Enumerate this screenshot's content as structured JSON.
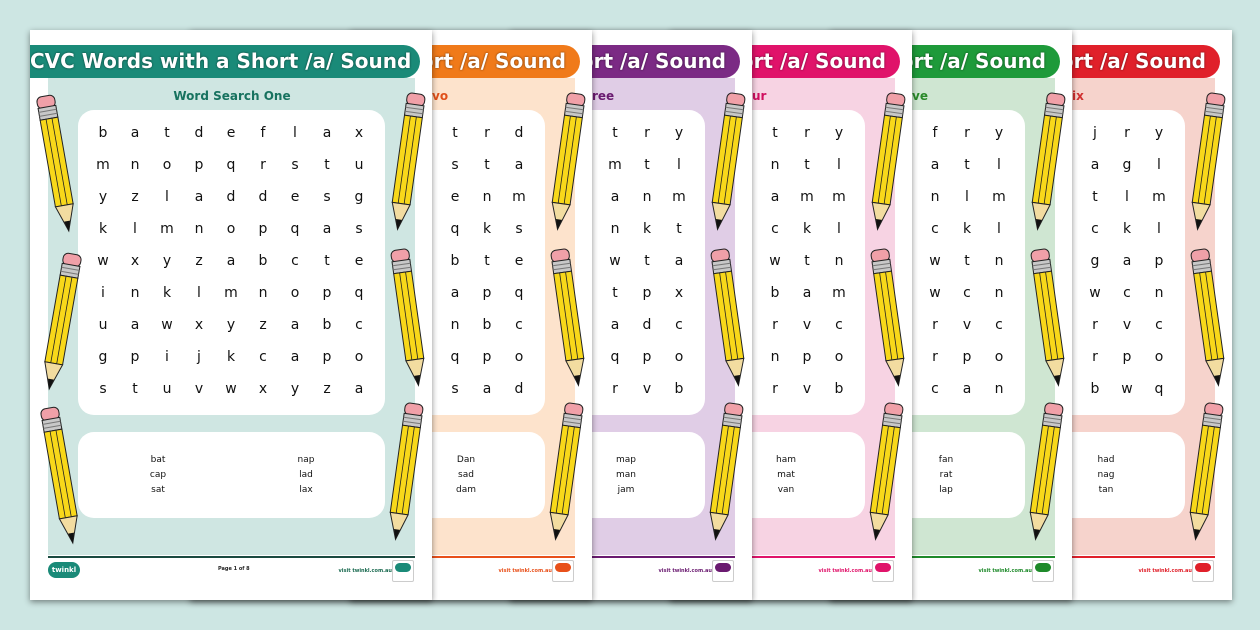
{
  "background_color": "#cde6e3",
  "pages": [
    {
      "title": "CVC Words with a Short /a/ Sound",
      "subtitle": "Word Search One",
      "title_color": "#1a8a78",
      "panel_color": "#cfe6e2",
      "subtitle_color": "#17725f",
      "grid": [
        [
          "b",
          "a",
          "t",
          "d",
          "e",
          "f",
          "l",
          "a",
          "x"
        ],
        [
          "m",
          "n",
          "o",
          "p",
          "q",
          "r",
          "s",
          "t",
          "u"
        ],
        [
          "y",
          "z",
          "l",
          "a",
          "d",
          "d",
          "e",
          "s",
          "g"
        ],
        [
          "k",
          "l",
          "m",
          "n",
          "o",
          "p",
          "q",
          "a",
          "s"
        ],
        [
          "w",
          "x",
          "y",
          "z",
          "a",
          "b",
          "c",
          "t",
          "e"
        ],
        [
          "i",
          "n",
          "k",
          "l",
          "m",
          "n",
          "o",
          "p",
          "q"
        ],
        [
          "u",
          "a",
          "w",
          "x",
          "y",
          "z",
          "a",
          "b",
          "c"
        ],
        [
          "g",
          "p",
          "i",
          "j",
          "k",
          "c",
          "a",
          "p",
          "o"
        ],
        [
          "s",
          "t",
          "u",
          "v",
          "w",
          "x",
          "y",
          "z",
          "a"
        ]
      ],
      "words": [
        [
          "bat",
          "cap",
          "sat"
        ],
        [
          "nap",
          "lad",
          "lax"
        ]
      ],
      "logo": "twinkl",
      "page_label": "Page 1 of 8",
      "url": "visit twinkl.com.au"
    },
    {
      "title": "ort /a/ Sound",
      "subtitle": "vo",
      "title_color": "#f07a1a",
      "panel_color": "#fde3cc",
      "subtitle_color": "#e0501a",
      "grid": [
        [
          "t",
          "r",
          "d"
        ],
        [
          "s",
          "t",
          "a"
        ],
        [
          "e",
          "n",
          "m"
        ],
        [
          "q",
          "k",
          "s"
        ],
        [
          "b",
          "t",
          "e"
        ],
        [
          "a",
          "p",
          "q"
        ],
        [
          "n",
          "b",
          "c"
        ],
        [
          "q",
          "p",
          "o"
        ],
        [
          "s",
          "a",
          "d"
        ]
      ],
      "words": [
        [
          "Dan",
          "sad",
          "dam"
        ]
      ],
      "url": "visit twinkl.com.au",
      "accent": "#e8501a"
    },
    {
      "title": "ort /a/ Sound",
      "subtitle": "ree",
      "title_color": "#7b2a84",
      "panel_color": "#e0cde6",
      "subtitle_color": "#6a1a70",
      "grid": [
        [
          "t",
          "r",
          "y"
        ],
        [
          "m",
          "t",
          "l"
        ],
        [
          "a",
          "n",
          "m"
        ],
        [
          "n",
          "k",
          "t"
        ],
        [
          "w",
          "t",
          "a"
        ],
        [
          "t",
          "p",
          "x"
        ],
        [
          "a",
          "d",
          "c"
        ],
        [
          "q",
          "p",
          "o"
        ],
        [
          "r",
          "v",
          "b"
        ]
      ],
      "words": [
        [
          "map",
          "man",
          "jam"
        ]
      ],
      "url": "visit twinkl.com.au",
      "accent": "#6a1a70"
    },
    {
      "title": "ort /a/ Sound",
      "subtitle": "ur",
      "title_color": "#e0136a",
      "panel_color": "#f7d3e3",
      "subtitle_color": "#d01060",
      "grid": [
        [
          "t",
          "r",
          "y"
        ],
        [
          "n",
          "t",
          "l"
        ],
        [
          "a",
          "m",
          "m"
        ],
        [
          "c",
          "k",
          "l"
        ],
        [
          "w",
          "t",
          "n"
        ],
        [
          "b",
          "a",
          "m"
        ],
        [
          "r",
          "v",
          "c"
        ],
        [
          "n",
          "p",
          "o"
        ],
        [
          "r",
          "v",
          "b"
        ]
      ],
      "words": [
        [
          "ham",
          "mat",
          "van"
        ]
      ],
      "url": "visit twinkl.com.au",
      "accent": "#e0136a"
    },
    {
      "title": "ort /a/ Sound",
      "subtitle": "ve",
      "title_color": "#1e9a3a",
      "panel_color": "#cfe6d2",
      "subtitle_color": "#2a8a2a",
      "grid": [
        [
          "f",
          "r",
          "y"
        ],
        [
          "a",
          "t",
          "l"
        ],
        [
          "n",
          "l",
          "m"
        ],
        [
          "c",
          "k",
          "l"
        ],
        [
          "w",
          "t",
          "n"
        ],
        [
          "w",
          "c",
          "n"
        ],
        [
          "r",
          "v",
          "c"
        ],
        [
          "r",
          "p",
          "o"
        ],
        [
          "c",
          "a",
          "n"
        ]
      ],
      "words": [
        [
          "fan",
          "rat",
          "lap"
        ]
      ],
      "url": "visit twinkl.com.au",
      "accent": "#1e8a2a"
    },
    {
      "title": "ort /a/ Sound",
      "subtitle": "ix",
      "title_color": "#e0202a",
      "panel_color": "#f6d3cc",
      "subtitle_color": "#d03030",
      "grid": [
        [
          "j",
          "r",
          "y"
        ],
        [
          "a",
          "g",
          "l"
        ],
        [
          "t",
          "l",
          "m"
        ],
        [
          "c",
          "k",
          "l"
        ],
        [
          "g",
          "a",
          "p"
        ],
        [
          "w",
          "c",
          "n"
        ],
        [
          "r",
          "v",
          "c"
        ],
        [
          "r",
          "p",
          "o"
        ],
        [
          "b",
          "w",
          "q"
        ]
      ],
      "words": [
        [
          "had",
          "nag",
          "tan"
        ]
      ],
      "url": "visit twinkl.com.au",
      "accent": "#e0202a"
    }
  ]
}
